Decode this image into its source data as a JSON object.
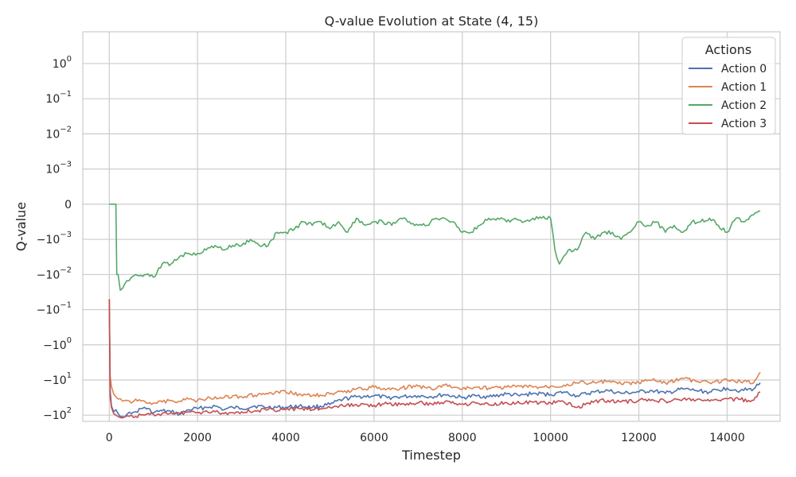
{
  "chart_data": {
    "type": "line",
    "title": "Q-value Evolution at State (4, 15)",
    "xlabel": "Timestep",
    "ylabel": "Q-value",
    "xlim": [
      -600,
      15200
    ],
    "xticks": [
      0,
      2000,
      4000,
      6000,
      8000,
      10000,
      12000,
      14000
    ],
    "xtick_labels": [
      "0",
      "2000",
      "4000",
      "6000",
      "8000",
      "10000",
      "12000",
      "14000"
    ],
    "yscale": "symlog",
    "linthresh": 0.001,
    "ylim": [
      -150,
      8
    ],
    "yticks": [
      1,
      0.1,
      0.01,
      0.001,
      0,
      -0.001,
      -0.01,
      -0.1,
      -1,
      -10,
      -100
    ],
    "ytick_labels": [
      {
        "base": "10",
        "exp": "0"
      },
      {
        "base": "10",
        "exp": "−1"
      },
      {
        "base": "10",
        "exp": "−2"
      },
      {
        "base": "10",
        "exp": "−3"
      },
      {
        "base": "0",
        "exp": ""
      },
      {
        "base": "−10",
        "exp": "−3"
      },
      {
        "base": "−10",
        "exp": "−2"
      },
      {
        "base": "−10",
        "exp": "−1"
      },
      {
        "base": "−10",
        "exp": "0"
      },
      {
        "base": "−10",
        "exp": "1"
      },
      {
        "base": "−10",
        "exp": "2"
      }
    ],
    "grid": true,
    "legend": {
      "title": "Actions",
      "position": "top-right"
    },
    "series": [
      {
        "name": "Action 0",
        "color": "#4c72b0",
        "x": [
          0,
          20,
          50,
          100,
          150,
          200,
          300,
          400,
          500,
          600,
          800,
          1000,
          1200,
          1400,
          1600,
          1800,
          2000,
          2200,
          2400,
          2600,
          2800,
          3000,
          3300,
          3600,
          4000,
          4300,
          4600,
          5000,
          5300,
          5600,
          6000,
          6300,
          6600,
          7000,
          7300,
          7600,
          8000,
          8300,
          8600,
          9000,
          9300,
          9600,
          10000,
          10300,
          10600,
          11000,
          11300,
          11600,
          12000,
          12300,
          12600,
          13000,
          13300,
          13600,
          14000,
          14300,
          14600,
          14750
        ],
        "y": [
          -0.05,
          -20,
          -55,
          -80,
          -70,
          -90,
          -110,
          -95,
          -90,
          -80,
          -60,
          -85,
          -75,
          -80,
          -95,
          -70,
          -65,
          -60,
          -55,
          -70,
          -60,
          -65,
          -55,
          -60,
          -60,
          -55,
          -60,
          -50,
          -35,
          -30,
          -28,
          -32,
          -30,
          -28,
          -30,
          -26,
          -32,
          -28,
          -30,
          -25,
          -28,
          -24,
          -26,
          -22,
          -28,
          -22,
          -20,
          -24,
          -22,
          -20,
          -24,
          -18,
          -20,
          -22,
          -17,
          -20,
          -18,
          -12
        ]
      },
      {
        "name": "Action 1",
        "color": "#dd8452",
        "x": [
          0,
          20,
          50,
          100,
          150,
          200,
          300,
          400,
          500,
          600,
          800,
          1000,
          1200,
          1400,
          1600,
          1800,
          2000,
          2200,
          2400,
          2600,
          2800,
          3000,
          3300,
          3600,
          4000,
          4300,
          4600,
          5000,
          5300,
          5600,
          6000,
          6300,
          6600,
          7000,
          7300,
          7600,
          8000,
          8300,
          8600,
          9000,
          9300,
          9600,
          10000,
          10300,
          10600,
          11000,
          11300,
          11600,
          12000,
          12300,
          12600,
          13000,
          13300,
          13600,
          14000,
          14300,
          14600,
          14750
        ],
        "y": [
          -0.05,
          -8,
          -15,
          -25,
          -30,
          -35,
          -40,
          -38,
          -45,
          -35,
          -40,
          -45,
          -42,
          -38,
          -40,
          -35,
          -38,
          -35,
          -30,
          -32,
          -28,
          -30,
          -27,
          -25,
          -22,
          -25,
          -28,
          -25,
          -22,
          -18,
          -16,
          -18,
          -17,
          -15,
          -18,
          -14,
          -18,
          -16,
          -17,
          -16,
          -15,
          -16,
          -15,
          -14,
          -12,
          -12,
          -11,
          -13,
          -12,
          -10,
          -12,
          -9,
          -11,
          -12,
          -10,
          -11,
          -12,
          -6
        ]
      },
      {
        "name": "Action 2",
        "color": "#55a868",
        "x": [
          0,
          50,
          100,
          150,
          170,
          200,
          250,
          300,
          400,
          500,
          600,
          800,
          1000,
          1200,
          1400,
          1600,
          1800,
          2000,
          2200,
          2400,
          2600,
          2800,
          3000,
          3200,
          3400,
          3600,
          3800,
          4000,
          4200,
          4400,
          4600,
          4800,
          5000,
          5200,
          5400,
          5600,
          5800,
          6000,
          6200,
          6400,
          6600,
          6800,
          7000,
          7200,
          7400,
          7600,
          7800,
          8000,
          8200,
          8400,
          8600,
          8800,
          9000,
          9200,
          9400,
          9600,
          9800,
          10000,
          10100,
          10200,
          10300,
          10400,
          10600,
          10800,
          11000,
          11200,
          11400,
          11600,
          11800,
          12000,
          12200,
          12400,
          12600,
          12800,
          13000,
          13200,
          13400,
          13600,
          13800,
          14000,
          14200,
          14400,
          14600,
          14750
        ],
        "y": [
          0,
          0,
          0,
          0,
          -0.01,
          -0.01,
          -0.028,
          -0.025,
          -0.015,
          -0.012,
          -0.01,
          -0.01,
          -0.012,
          -0.005,
          -0.005,
          -0.003,
          -0.0025,
          -0.0025,
          -0.002,
          -0.0015,
          -0.002,
          -0.0015,
          -0.0015,
          -0.001,
          -0.0015,
          -0.0015,
          -0.0008,
          -0.0008,
          -0.0007,
          -0.0005,
          -0.0006,
          -0.0005,
          -0.0007,
          -0.0005,
          -0.0008,
          -0.0004,
          -0.0006,
          -0.0005,
          -0.0005,
          -0.0006,
          -0.0004,
          -0.0005,
          -0.0006,
          -0.0006,
          -0.0004,
          -0.0004,
          -0.0005,
          -0.0008,
          -0.0008,
          -0.0006,
          -0.0004,
          -0.0004,
          -0.0005,
          -0.0004,
          -0.0005,
          -0.0004,
          -0.0004,
          -0.0004,
          -0.002,
          -0.005,
          -0.003,
          -0.002,
          -0.002,
          -0.0008,
          -0.001,
          -0.0008,
          -0.0008,
          -0.001,
          -0.0008,
          -0.0005,
          -0.0006,
          -0.0005,
          -0.0008,
          -0.0006,
          -0.0008,
          -0.0005,
          -0.0005,
          -0.0004,
          -0.0006,
          -0.0008,
          -0.0004,
          -0.0005,
          -0.0003,
          -0.0002
        ]
      },
      {
        "name": "Action 3",
        "color": "#c44e52",
        "x": [
          0,
          20,
          50,
          100,
          150,
          200,
          300,
          400,
          500,
          600,
          800,
          1000,
          1200,
          1400,
          1600,
          1800,
          2000,
          2200,
          2400,
          2600,
          2800,
          3000,
          3300,
          3600,
          4000,
          4300,
          4600,
          5000,
          5300,
          5600,
          6000,
          6300,
          6600,
          7000,
          7300,
          7600,
          8000,
          8300,
          8600,
          9000,
          9300,
          9600,
          10000,
          10300,
          10600,
          11000,
          11300,
          11600,
          12000,
          12300,
          12600,
          13000,
          13300,
          13600,
          14000,
          14300,
          14600,
          14750
        ],
        "y": [
          -0.05,
          -30,
          -60,
          -90,
          -100,
          -110,
          -120,
          -105,
          -100,
          -110,
          -100,
          -95,
          -90,
          -85,
          -90,
          -80,
          -85,
          -75,
          -80,
          -90,
          -85,
          -80,
          -75,
          -70,
          -70,
          -65,
          -70,
          -60,
          -55,
          -50,
          -52,
          -48,
          -50,
          -45,
          -48,
          -42,
          -48,
          -45,
          -50,
          -44,
          -46,
          -43,
          -45,
          -42,
          -60,
          -40,
          -38,
          -42,
          -38,
          -36,
          -40,
          -35,
          -37,
          -40,
          -34,
          -36,
          -38,
          -22
        ]
      }
    ]
  }
}
